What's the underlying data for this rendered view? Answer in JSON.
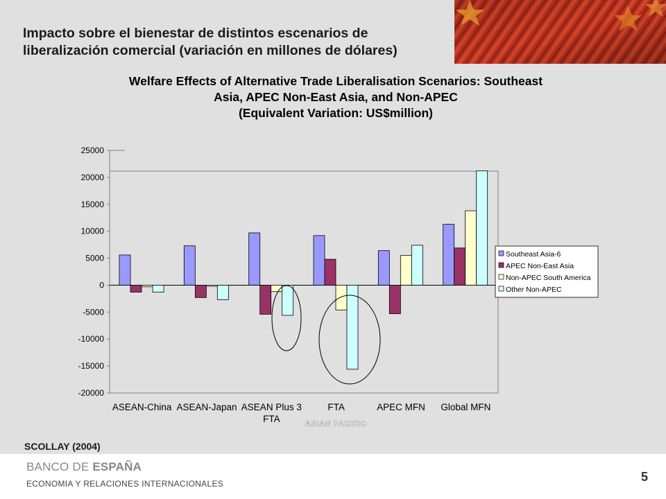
{
  "slide": {
    "title_line1": "Impacto sobre el bienestar de distintos escenarios de",
    "title_line2": "liberalización comercial (variación en millones de dólares)",
    "source": "SCOLLAY (2004)",
    "bank_name_regular": "BANCO DE ",
    "bank_name_bold": "ESPAÑA",
    "footer": "ECONOMIA Y RELACIONES INTERNACIONALES",
    "page_number": "5",
    "annotation": "ASIAN PACIFIC"
  },
  "colors": {
    "panel": "#e0e0e0",
    "series": [
      "#9999ff",
      "#993366",
      "#ffffcc",
      "#ccffff"
    ]
  },
  "chart_data": {
    "type": "bar",
    "title_lines": [
      "Welfare Effects of Alternative Trade Liberalisation Scenarios: Southeast",
      "Asia, APEC Non-East Asia, and Non-APEC",
      "(Equivalent Variation:  US$million)"
    ],
    "categories": [
      [
        "ASEAN-China"
      ],
      [
        "ASEAN-Japan"
      ],
      [
        "ASEAN Plus 3",
        "FTA"
      ],
      [
        "FTA"
      ],
      [
        "APEC MFN"
      ],
      [
        "Global MFN"
      ]
    ],
    "series": [
      {
        "name": "Southeast Asia-6",
        "values": [
          5600,
          7300,
          9700,
          9200,
          6400,
          11300
        ]
      },
      {
        "name": "APEC Non-East Asia",
        "values": [
          -1300,
          -2300,
          -5400,
          4800,
          -5300,
          6900
        ]
      },
      {
        "name": "Non-APEC South America",
        "values": [
          -300,
          -200,
          -1200,
          -4600,
          5500,
          13800
        ]
      },
      {
        "name": "Other Non-APEC",
        "values": [
          -1300,
          -2700,
          -5600,
          -15600,
          7400,
          21200
        ]
      }
    ],
    "ylim": [
      -20000,
      25000
    ],
    "yticks": [
      "25000",
      "20000",
      "15000",
      "10000",
      "5000",
      "0",
      "-5000",
      "-10000",
      "-15000",
      "-20000"
    ],
    "ytick_values": [
      25000,
      20000,
      15000,
      10000,
      5000,
      0,
      -5000,
      -10000,
      -15000,
      -20000
    ],
    "legend_position": "right",
    "grid": false
  }
}
